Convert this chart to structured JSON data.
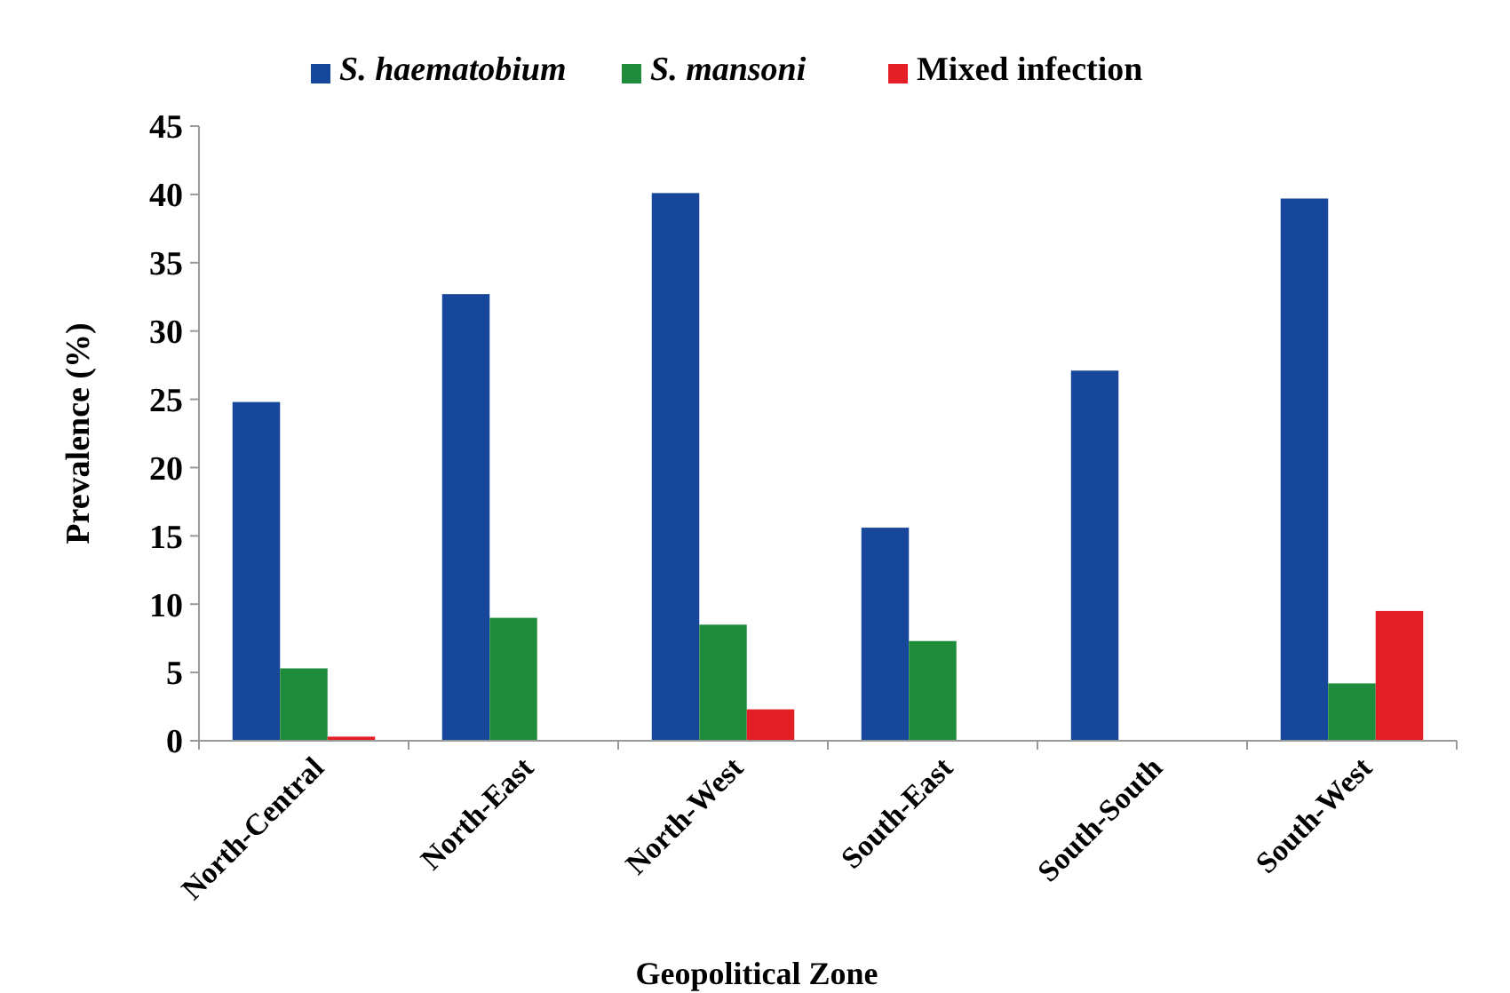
{
  "chart_data": {
    "type": "bar",
    "xlabel": "Geopolitical Zone",
    "ylabel": "Prevalence (%)",
    "categories": [
      "North-Central",
      "North-East",
      "North-West",
      "South-East",
      "South-South",
      "South-West"
    ],
    "series": [
      {
        "name": "S. haematobium",
        "color": "#17479a",
        "values": [
          24.8,
          32.7,
          40.1,
          15.6,
          27.1,
          39.7
        ]
      },
      {
        "name": "S. mansoni",
        "color": "#1e8c3a",
        "values": [
          5.3,
          9.0,
          8.5,
          7.3,
          0,
          4.2
        ]
      },
      {
        "name": "Mixed infection",
        "color": "#e31e24",
        "values": [
          0.3,
          0,
          2.3,
          0,
          0,
          9.5
        ]
      }
    ],
    "ylim": [
      0,
      45
    ],
    "yticks": [
      0,
      5,
      10,
      15,
      20,
      25,
      30,
      35,
      40,
      45
    ],
    "legend": "top",
    "grid": false
  }
}
